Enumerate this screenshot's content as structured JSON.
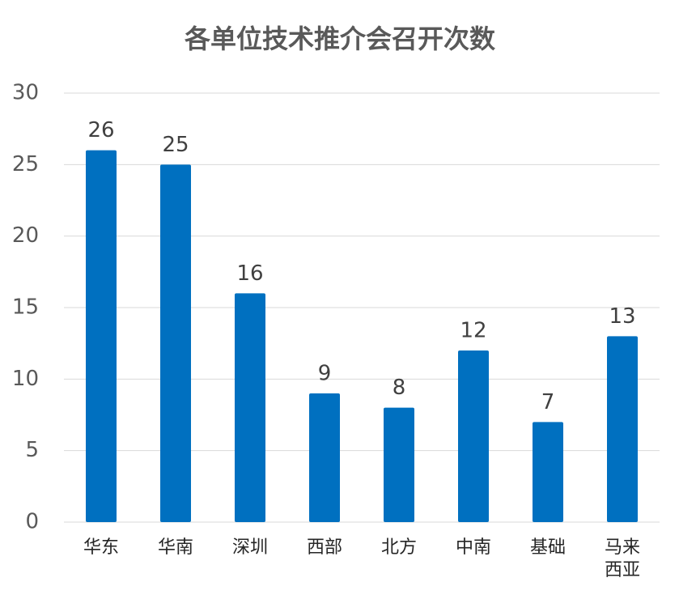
{
  "chart_data": {
    "type": "bar",
    "title": "各单位技术推介会召开次数",
    "categories": [
      "华东",
      "华南",
      "深圳",
      "西部",
      "北方",
      "中南",
      "基础",
      "马来西亚"
    ],
    "values": [
      26,
      25,
      16,
      9,
      8,
      12,
      7,
      13
    ],
    "color": "#0070c0",
    "ylim": [
      0,
      30
    ],
    "yticks": [
      0,
      5,
      10,
      15,
      20,
      25,
      30
    ],
    "grid": true
  }
}
